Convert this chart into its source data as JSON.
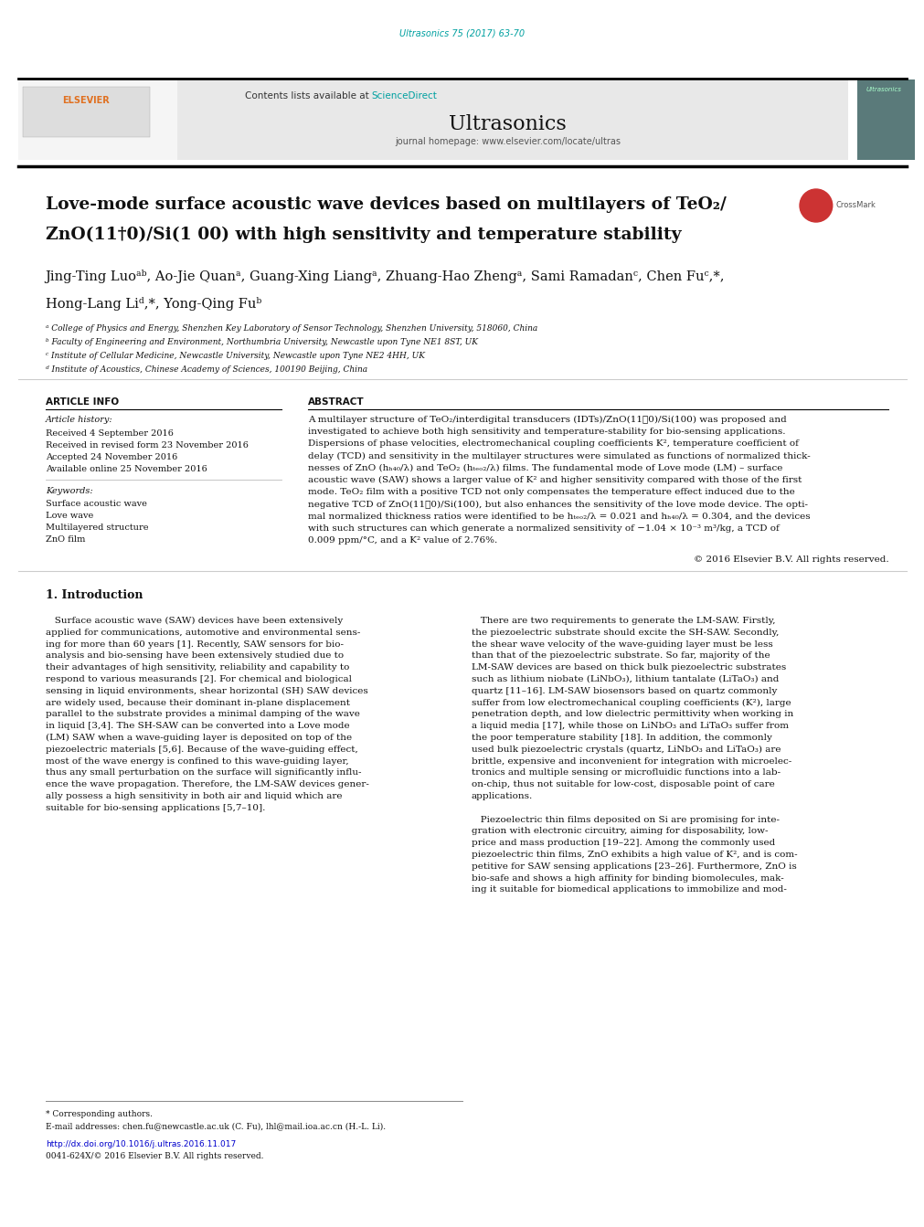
{
  "page_width": 9.92,
  "page_height": 13.23,
  "bg_color": "#ffffff",
  "journal_ref": "Ultrasonics 75 (2017) 63-70",
  "journal_ref_color": "#00a0a0",
  "sciencedirect_color": "#00a0a0",
  "journal_name": "Ultrasonics",
  "homepage_text": "journal homepage: www.elsevier.com/locate/ultras",
  "header_bg": "#e8e8e8",
  "right_panel_bg": "#5a7a7a",
  "section_article_info": "ARTICLE INFO",
  "section_abstract": "ABSTRACT",
  "article_history_label": "Article history:",
  "received1": "Received 4 September 2016",
  "received2": "Received in revised form 23 November 2016",
  "accepted": "Accepted 24 November 2016",
  "available": "Available online 25 November 2016",
  "keywords_label": "Keywords:",
  "kw1": "Surface acoustic wave",
  "kw2": "Love wave",
  "kw3": "Multilayered structure",
  "kw4": "ZnO film",
  "copyright": "© 2016 Elsevier B.V. All rights reserved.",
  "section1_title": "1. Introduction",
  "footnote_star": "* Corresponding authors.",
  "footnote_email": "E-mail addresses: chen.fu@newcastle.ac.uk (C. Fu), lhl@mail.ioa.ac.cn (H.-L. Li).",
  "doi_text": "http://dx.doi.org/10.1016/j.ultras.2016.11.017",
  "doi_color": "#0000cc",
  "issn_text": "0041-624X/© 2016 Elsevier B.V. All rights reserved.",
  "affil_a": "ᵃ College of Physics and Energy, Shenzhen Key Laboratory of Sensor Technology, Shenzhen University, 518060, China",
  "affil_b": "ᵇ Faculty of Engineering and Environment, Northumbria University, Newcastle upon Tyne NE1 8ST, UK",
  "affil_c": "ᶜ Institute of Cellular Medicine, Newcastle University, Newcastle upon Tyne NE2 4HH, UK",
  "affil_d": "ᵈ Institute of Acoustics, Chinese Academy of Sciences, 100190 Beijing, China"
}
